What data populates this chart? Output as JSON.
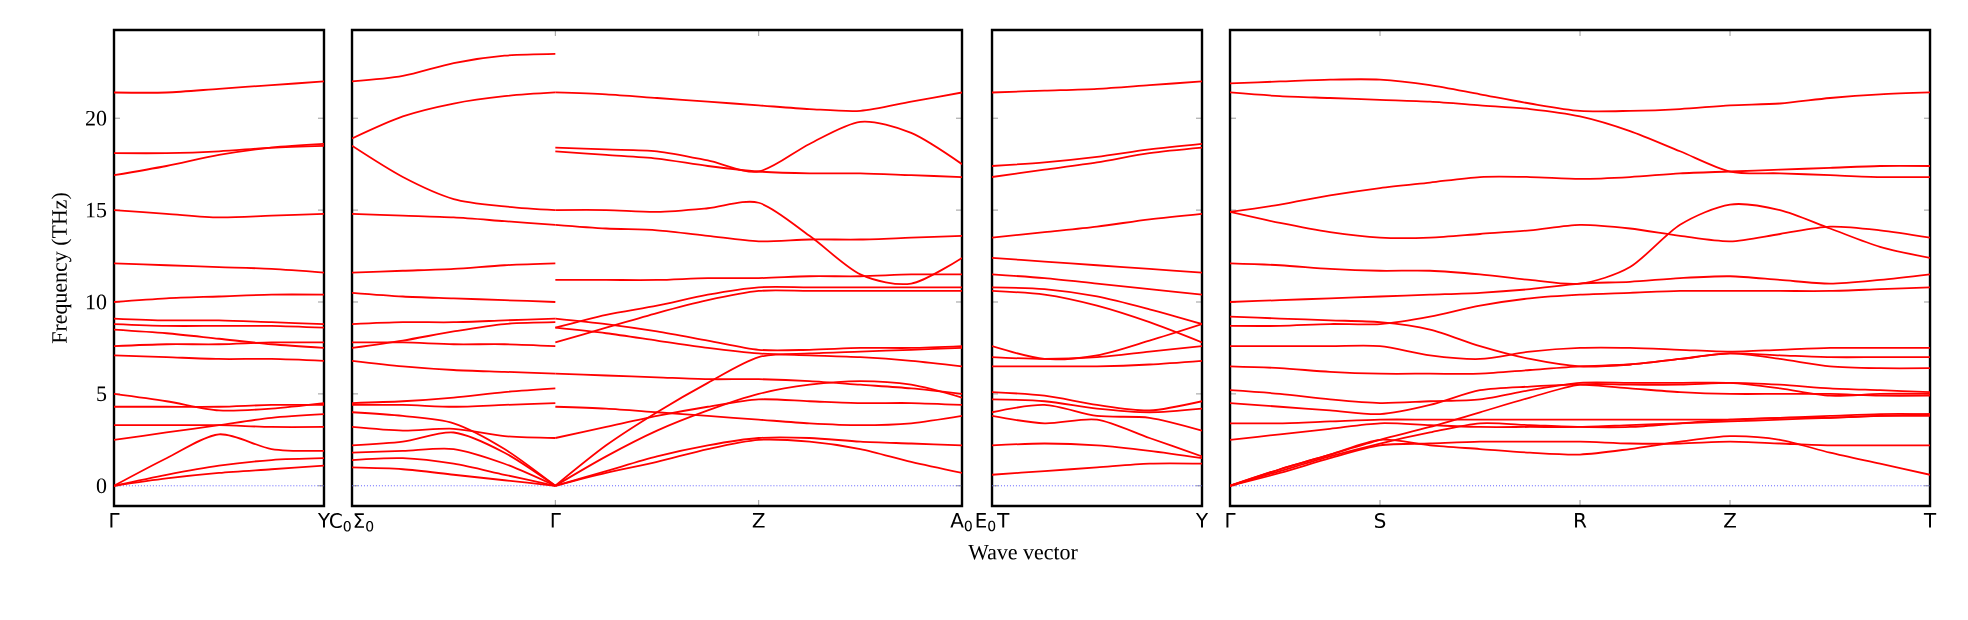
{
  "chart_data": [
    {
      "type": "line",
      "ylabel": "Frequency (THz)",
      "categories": [
        "Γ",
        null,
        null,
        null,
        "Y"
      ],
      "ylim": [
        -1.1,
        24.8
      ],
      "yticks": [
        0,
        5,
        10,
        15,
        20
      ],
      "ref_lines": [
        {
          "axis": "y",
          "value": 0,
          "color": "#6060ff",
          "line_style": "dotted"
        }
      ],
      "series": [
        {
          "values": [
            21.4,
            21.4,
            21.6,
            21.8,
            22.0
          ],
          "color": "#ff0000"
        },
        {
          "values": [
            18.1,
            18.1,
            18.2,
            18.4,
            18.5
          ],
          "color": "#ff0000"
        },
        {
          "values": [
            16.9,
            17.4,
            18.0,
            18.4,
            18.6
          ],
          "color": "#ff0000"
        },
        {
          "values": [
            15.0,
            14.8,
            14.6,
            14.7,
            14.8
          ],
          "color": "#ff0000"
        },
        {
          "values": [
            12.1,
            12.0,
            11.9,
            11.8,
            11.6
          ],
          "color": "#ff0000"
        },
        {
          "values": [
            10.0,
            10.2,
            10.3,
            10.4,
            10.4
          ],
          "color": "#ff0000"
        },
        {
          "values": [
            9.1,
            9.0,
            9.0,
            8.9,
            8.8
          ],
          "color": "#ff0000"
        },
        {
          "values": [
            8.8,
            8.7,
            8.7,
            8.7,
            8.6
          ],
          "color": "#ff0000"
        },
        {
          "values": [
            8.5,
            8.3,
            8.0,
            7.7,
            7.5
          ],
          "color": "#ff0000"
        },
        {
          "values": [
            7.6,
            7.7,
            7.7,
            7.8,
            7.8
          ],
          "color": "#ff0000"
        },
        {
          "values": [
            7.1,
            7.0,
            6.9,
            6.9,
            6.8
          ],
          "color": "#ff0000"
        },
        {
          "values": [
            5.0,
            4.6,
            4.1,
            4.2,
            4.5
          ],
          "color": "#ff0000"
        },
        {
          "values": [
            4.3,
            4.3,
            4.3,
            4.4,
            4.4
          ],
          "color": "#ff0000"
        },
        {
          "values": [
            3.3,
            3.3,
            3.3,
            3.2,
            3.2
          ],
          "color": "#ff0000"
        },
        {
          "values": [
            2.5,
            2.9,
            3.3,
            3.7,
            3.9
          ],
          "color": "#ff0000"
        },
        {
          "values": [
            0,
            1.5,
            2.8,
            2.0,
            1.9
          ],
          "color": "#ff0000"
        },
        {
          "values": [
            0,
            0.6,
            1.1,
            1.4,
            1.5
          ],
          "color": "#ff0000"
        },
        {
          "values": [
            0,
            0.4,
            0.7,
            0.9,
            1.1
          ],
          "color": "#ff0000"
        }
      ]
    },
    {
      "type": "line",
      "categories": [
        "C$_{0}$Σ$_{0}$",
        null,
        null,
        null,
        "Γ",
        null,
        null,
        null,
        "Z",
        null,
        null,
        null,
        "A$_{0}$"
      ],
      "ylim": [
        -1.1,
        24.8
      ],
      "yticks": [
        0,
        5,
        10,
        15,
        20
      ],
      "tick_labels": "x",
      "ref_lines": [
        {
          "axis": "y",
          "value": 0,
          "color": "#6060ff",
          "line_style": "dotted"
        }
      ],
      "series": [
        {
          "values": [
            22.0,
            22.3,
            23.0,
            23.4,
            23.5,
            null,
            null,
            null,
            null,
            null,
            null,
            null,
            null
          ],
          "color": "#ff0000"
        },
        {
          "values": [
            18.9,
            20.1,
            20.8,
            21.2,
            21.4,
            null,
            null,
            null,
            null,
            null,
            null,
            null,
            null
          ],
          "color": "#ff0000"
        },
        {
          "values": [
            18.5,
            16.8,
            15.6,
            15.2,
            15.0,
            null,
            null,
            null,
            null,
            null,
            null,
            null,
            null
          ],
          "color": "#ff0000"
        },
        {
          "values": [
            14.8,
            14.7,
            14.6,
            14.4,
            14.2,
            null,
            null,
            null,
            null,
            null,
            null,
            null,
            null
          ],
          "color": "#ff0000"
        },
        {
          "values": [
            11.6,
            11.7,
            11.8,
            12.0,
            12.1,
            null,
            null,
            null,
            null,
            null,
            null,
            null,
            null
          ],
          "color": "#ff0000"
        },
        {
          "values": [
            10.5,
            10.3,
            10.2,
            10.1,
            10.0,
            null,
            null,
            null,
            null,
            null,
            null,
            null,
            null
          ],
          "color": "#ff0000"
        },
        {
          "values": [
            8.8,
            8.9,
            8.9,
            9.0,
            9.1,
            null,
            null,
            null,
            null,
            null,
            null,
            null,
            null
          ],
          "color": "#ff0000"
        },
        {
          "values": [
            7.5,
            7.9,
            8.4,
            8.8,
            8.9,
            null,
            null,
            null,
            null,
            null,
            null,
            null,
            null
          ],
          "color": "#ff0000"
        },
        {
          "values": [
            7.8,
            7.8,
            7.7,
            7.7,
            7.6,
            null,
            null,
            null,
            null,
            null,
            null,
            null,
            null
          ],
          "color": "#ff0000"
        },
        {
          "values": [
            6.8,
            6.5,
            6.3,
            6.2,
            6.1,
            null,
            null,
            null,
            null,
            null,
            null,
            null,
            null
          ],
          "color": "#ff0000"
        },
        {
          "values": [
            4.5,
            4.6,
            4.8,
            5.1,
            5.3,
            null,
            null,
            null,
            null,
            null,
            null,
            null,
            null
          ],
          "color": "#ff0000"
        },
        {
          "values": [
            4.4,
            4.4,
            4.3,
            4.4,
            4.5,
            null,
            null,
            null,
            null,
            null,
            null,
            null,
            null
          ],
          "color": "#ff0000"
        },
        {
          "values": [
            3.2,
            3.0,
            3.1,
            2.7,
            2.6,
            null,
            null,
            null,
            null,
            null,
            null,
            null,
            null
          ],
          "color": "#ff0000"
        },
        {
          "values": [
            4.0,
            3.8,
            3.4,
            2.0,
            0,
            null,
            null,
            null,
            null,
            null,
            null,
            null,
            null
          ],
          "color": "#ff0000"
        },
        {
          "values": [
            2.2,
            2.4,
            2.9,
            1.8,
            0,
            null,
            null,
            null,
            null,
            null,
            null,
            null,
            null
          ],
          "color": "#ff0000"
        },
        {
          "values": [
            1.8,
            1.9,
            2.0,
            1.2,
            0,
            null,
            null,
            null,
            null,
            null,
            null,
            null,
            null
          ],
          "color": "#ff0000"
        },
        {
          "values": [
            1.4,
            1.5,
            1.2,
            0.6,
            0,
            null,
            null,
            null,
            null,
            null,
            null,
            null,
            null
          ],
          "color": "#ff0000"
        },
        {
          "values": [
            1.0,
            0.9,
            0.6,
            0.3,
            0,
            null,
            null,
            null,
            null,
            null,
            null,
            null,
            null
          ],
          "color": "#ff0000"
        },
        {
          "values": [
            null,
            null,
            null,
            null,
            21.4,
            21.3,
            21.1,
            20.9,
            20.7,
            20.5,
            20.4,
            20.9,
            21.4
          ],
          "color": "#ff0000"
        },
        {
          "values": [
            null,
            null,
            null,
            null,
            18.4,
            18.3,
            18.2,
            17.7,
            17.1,
            18.6,
            19.8,
            19.2,
            17.5
          ],
          "color": "#ff0000"
        },
        {
          "values": [
            null,
            null,
            null,
            null,
            18.2,
            18.0,
            17.8,
            17.4,
            17.1,
            17.0,
            17.0,
            16.9,
            16.8
          ],
          "color": "#ff0000"
        },
        {
          "values": [
            null,
            null,
            null,
            null,
            15.0,
            15.0,
            14.9,
            15.1,
            15.4,
            13.6,
            11.5,
            11.0,
            12.4
          ],
          "color": "#ff0000"
        },
        {
          "values": [
            null,
            null,
            null,
            null,
            14.2,
            14.0,
            13.9,
            13.6,
            13.3,
            13.4,
            13.4,
            13.5,
            13.6
          ],
          "color": "#ff0000"
        },
        {
          "values": [
            null,
            null,
            null,
            null,
            11.2,
            11.2,
            11.2,
            11.3,
            11.3,
            11.4,
            11.4,
            11.5,
            11.5
          ],
          "color": "#ff0000"
        },
        {
          "values": [
            null,
            null,
            null,
            null,
            8.6,
            9.3,
            9.8,
            10.4,
            10.8,
            10.8,
            10.8,
            10.8,
            10.8
          ],
          "color": "#ff0000"
        },
        {
          "values": [
            null,
            null,
            null,
            null,
            7.8,
            8.6,
            9.4,
            10.1,
            10.6,
            10.6,
            10.6,
            10.6,
            10.6
          ],
          "color": "#ff0000"
        },
        {
          "values": [
            null,
            null,
            null,
            null,
            9.1,
            8.8,
            8.4,
            7.9,
            7.4,
            7.4,
            7.5,
            7.5,
            7.6
          ],
          "color": "#ff0000"
        },
        {
          "values": [
            null,
            null,
            null,
            null,
            8.6,
            8.3,
            7.9,
            7.5,
            7.2,
            7.1,
            7.0,
            6.8,
            6.5
          ],
          "color": "#ff0000"
        },
        {
          "values": [
            null,
            null,
            null,
            null,
            6.1,
            6.0,
            5.9,
            5.8,
            5.8,
            5.7,
            5.5,
            5.3,
            5.0
          ],
          "color": "#ff0000"
        },
        {
          "values": [
            null,
            null,
            null,
            null,
            0,
            2.2,
            4.0,
            5.6,
            7.0,
            7.2,
            7.3,
            7.4,
            7.5
          ],
          "color": "#ff0000"
        },
        {
          "values": [
            null,
            null,
            null,
            null,
            0,
            1.6,
            3.0,
            4.1,
            5.0,
            5.5,
            5.7,
            5.5,
            4.8
          ],
          "color": "#ff0000"
        },
        {
          "values": [
            null,
            null,
            null,
            null,
            4.3,
            4.2,
            4.0,
            3.8,
            3.6,
            3.4,
            3.3,
            3.4,
            3.8
          ],
          "color": "#ff0000"
        },
        {
          "values": [
            null,
            null,
            null,
            null,
            2.6,
            3.2,
            3.8,
            4.3,
            4.7,
            4.6,
            4.5,
            4.5,
            4.4
          ],
          "color": "#ff0000"
        },
        {
          "values": [
            null,
            null,
            null,
            null,
            0,
            0.8,
            1.6,
            2.2,
            2.6,
            2.6,
            2.4,
            2.3,
            2.2
          ],
          "color": "#ff0000"
        },
        {
          "values": [
            null,
            null,
            null,
            null,
            0,
            0.7,
            1.3,
            2.0,
            2.5,
            2.4,
            2.0,
            1.3,
            0.7
          ],
          "color": "#ff0000"
        }
      ]
    },
    {
      "type": "line",
      "xlabel": "Wave vector",
      "categories": [
        "E$_{0}$T",
        null,
        null,
        null,
        "Y"
      ],
      "ylim": [
        -1.1,
        24.8
      ],
      "yticks": [
        0,
        5,
        10,
        15,
        20
      ],
      "tick_labels": "x",
      "ref_lines": [
        {
          "axis": "y",
          "value": 0,
          "color": "#6060ff",
          "line_style": "dotted"
        }
      ],
      "series": [
        {
          "values": [
            21.4,
            21.5,
            21.6,
            21.8,
            22.0
          ],
          "color": "#ff0000"
        },
        {
          "values": [
            17.4,
            17.6,
            17.9,
            18.3,
            18.6
          ],
          "color": "#ff0000"
        },
        {
          "values": [
            16.8,
            17.2,
            17.6,
            18.1,
            18.4
          ],
          "color": "#ff0000"
        },
        {
          "values": [
            13.5,
            13.8,
            14.1,
            14.5,
            14.8
          ],
          "color": "#ff0000"
        },
        {
          "values": [
            12.4,
            12.2,
            12.0,
            11.8,
            11.6
          ],
          "color": "#ff0000"
        },
        {
          "values": [
            11.5,
            11.3,
            11.0,
            10.7,
            10.4
          ],
          "color": "#ff0000"
        },
        {
          "values": [
            10.8,
            10.7,
            10.3,
            9.6,
            8.8
          ],
          "color": "#ff0000"
        },
        {
          "values": [
            10.6,
            10.4,
            9.8,
            8.9,
            7.8
          ],
          "color": "#ff0000"
        },
        {
          "values": [
            7.6,
            6.9,
            7.1,
            7.9,
            8.8
          ],
          "color": "#ff0000"
        },
        {
          "values": [
            7.0,
            6.9,
            7.0,
            7.3,
            7.6
          ],
          "color": "#ff0000"
        },
        {
          "values": [
            6.5,
            6.5,
            6.5,
            6.6,
            6.8
          ],
          "color": "#ff0000"
        },
        {
          "values": [
            5.1,
            4.9,
            4.4,
            4.1,
            4.6
          ],
          "color": "#ff0000"
        },
        {
          "values": [
            4.7,
            4.6,
            4.2,
            4.0,
            4.2
          ],
          "color": "#ff0000"
        },
        {
          "values": [
            4.0,
            4.4,
            3.8,
            3.7,
            3.0
          ],
          "color": "#ff0000"
        },
        {
          "values": [
            3.8,
            3.4,
            3.6,
            2.6,
            1.6
          ],
          "color": "#ff0000"
        },
        {
          "values": [
            2.2,
            2.3,
            2.2,
            1.9,
            1.5
          ],
          "color": "#ff0000"
        },
        {
          "values": [
            0.6,
            0.8,
            1.0,
            1.2,
            1.2
          ],
          "color": "#ff0000"
        }
      ]
    },
    {
      "type": "line",
      "categories": [
        "Γ",
        null,
        null,
        "S",
        null,
        null,
        null,
        "R",
        null,
        null,
        "Z",
        null,
        null,
        null,
        "T"
      ],
      "ylim": [
        -1.1,
        24.8
      ],
      "yticks": [
        0,
        5,
        10,
        15,
        20
      ],
      "tick_labels": "x",
      "ref_lines": [
        {
          "axis": "y",
          "value": 0,
          "color": "#6060ff",
          "line_style": "dotted"
        }
      ],
      "series": [
        {
          "values": [
            21.9,
            22.0,
            22.1,
            22.1,
            21.8,
            21.3,
            20.8,
            20.4,
            20.4,
            20.5,
            20.7,
            20.8,
            21.1,
            21.3,
            21.4
          ],
          "color": "#ff0000"
        },
        {
          "values": [
            21.4,
            21.2,
            21.1,
            21.0,
            20.9,
            20.7,
            20.5,
            20.1,
            19.3,
            18.2,
            17.1,
            17.0,
            16.9,
            16.8,
            16.8
          ],
          "color": "#ff0000"
        },
        {
          "values": [
            14.9,
            15.3,
            15.8,
            16.2,
            16.5,
            16.8,
            16.8,
            16.7,
            16.8,
            17.0,
            17.1,
            17.2,
            17.3,
            17.4,
            17.4
          ],
          "color": "#ff0000"
        },
        {
          "values": [
            14.9,
            14.3,
            13.8,
            13.5,
            13.5,
            13.7,
            13.9,
            14.2,
            14.0,
            13.6,
            13.3,
            13.7,
            14.1,
            13.9,
            13.5
          ],
          "color": "#ff0000"
        },
        {
          "values": [
            12.1,
            12.0,
            11.8,
            11.7,
            11.7,
            11.5,
            11.2,
            11.0,
            11.9,
            14.2,
            15.3,
            15.0,
            14.0,
            13.0,
            12.4
          ],
          "color": "#ff0000"
        },
        {
          "values": [
            10.0,
            10.1,
            10.2,
            10.3,
            10.4,
            10.5,
            10.7,
            11.0,
            11.1,
            11.3,
            11.4,
            11.2,
            11.0,
            11.2,
            11.5
          ],
          "color": "#ff0000"
        },
        {
          "values": [
            9.2,
            9.1,
            9.0,
            8.9,
            8.5,
            7.6,
            6.9,
            6.5,
            6.6,
            6.9,
            7.2,
            7.1,
            7.0,
            7.0,
            7.0
          ],
          "color": "#ff0000"
        },
        {
          "values": [
            8.7,
            8.7,
            8.8,
            8.8,
            9.2,
            9.8,
            10.2,
            10.4,
            10.5,
            10.6,
            10.6,
            10.6,
            10.6,
            10.7,
            10.8
          ],
          "color": "#ff0000"
        },
        {
          "values": [
            7.6,
            7.6,
            7.6,
            7.6,
            7.1,
            6.9,
            7.3,
            7.5,
            7.5,
            7.4,
            7.3,
            7.4,
            7.5,
            7.5,
            7.5
          ],
          "color": "#ff0000"
        },
        {
          "values": [
            6.5,
            6.4,
            6.2,
            6.1,
            6.1,
            6.1,
            6.3,
            6.5,
            6.6,
            6.9,
            7.2,
            6.9,
            6.5,
            6.4,
            6.4
          ],
          "color": "#ff0000"
        },
        {
          "values": [
            5.2,
            5.0,
            4.7,
            4.5,
            4.6,
            4.7,
            5.2,
            5.6,
            5.6,
            5.6,
            5.6,
            5.3,
            4.9,
            5.0,
            5.0
          ],
          "color": "#ff0000"
        },
        {
          "values": [
            4.5,
            4.3,
            4.1,
            3.9,
            4.4,
            5.2,
            5.4,
            5.5,
            5.3,
            5.1,
            5.0,
            5.0,
            5.0,
            4.9,
            4.9
          ],
          "color": "#ff0000"
        },
        {
          "values": [
            3.4,
            3.4,
            3.5,
            3.6,
            3.6,
            3.6,
            3.6,
            3.6,
            3.6,
            3.6,
            3.6,
            3.7,
            3.7,
            3.8,
            3.8
          ],
          "color": "#ff0000"
        },
        {
          "values": [
            2.5,
            2.8,
            3.1,
            3.4,
            3.3,
            3.2,
            3.2,
            3.2,
            3.3,
            3.4,
            3.5,
            3.6,
            3.7,
            3.8,
            3.9
          ],
          "color": "#ff0000"
        },
        {
          "values": [
            0,
            0.9,
            1.7,
            2.5,
            3.2,
            4.0,
            4.8,
            5.5,
            5.5,
            5.5,
            5.6,
            5.5,
            5.3,
            5.2,
            5.1
          ],
          "color": "#ff0000"
        },
        {
          "values": [
            0,
            0.8,
            1.6,
            2.3,
            2.9,
            3.4,
            3.3,
            3.2,
            3.2,
            3.4,
            3.6,
            3.7,
            3.8,
            3.9,
            3.9
          ],
          "color": "#ff0000"
        },
        {
          "values": [
            0,
            0.9,
            1.7,
            2.5,
            2.2,
            2.0,
            1.8,
            1.7,
            2.0,
            2.4,
            2.7,
            2.5,
            1.8,
            1.2,
            0.6
          ],
          "color": "#ff0000"
        },
        {
          "values": [
            0,
            0.7,
            1.5,
            2.2,
            2.3,
            2.4,
            2.4,
            2.4,
            2.3,
            2.3,
            2.4,
            2.3,
            2.2,
            2.2,
            2.2
          ],
          "color": "#ff0000"
        }
      ]
    }
  ]
}
